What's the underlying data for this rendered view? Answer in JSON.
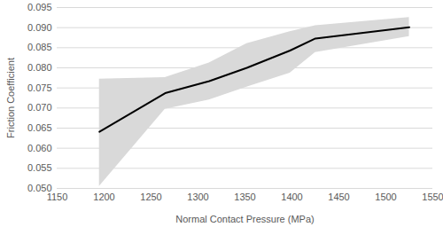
{
  "chart_data": {
    "type": "line",
    "x_label": "Normal Contact Pressure (MPa)",
    "y_label": "Friction Coefficient",
    "x": [
      1195,
      1265,
      1312,
      1352,
      1398,
      1425,
      1525
    ],
    "values": [
      0.0641,
      0.0737,
      0.0767,
      0.08,
      0.0843,
      0.0873,
      0.0901
    ],
    "lower": [
      0.0505,
      0.0697,
      0.072,
      0.0752,
      0.0787,
      0.0838,
      0.0878
    ],
    "upper": [
      0.0772,
      0.0776,
      0.0812,
      0.086,
      0.089,
      0.0905,
      0.0925
    ],
    "color": "#000000",
    "xlim": [
      1150,
      1550
    ],
    "xticks": [
      1150,
      1200,
      1250,
      1300,
      1350,
      1400,
      1450,
      1500,
      1550
    ],
    "ylim": [
      0.05,
      0.095
    ],
    "yticks": [
      {
        "value": 0.05,
        "label": "0.050"
      },
      {
        "value": 0.055,
        "label": "0.055"
      },
      {
        "value": 0.06,
        "label": "0.060"
      },
      {
        "value": 0.065,
        "label": "0.065"
      },
      {
        "value": 0.07,
        "label": "0.070"
      },
      {
        "value": 0.075,
        "label": "0.075"
      },
      {
        "value": 0.08,
        "label": "0.080"
      },
      {
        "value": 0.085,
        "label": "0.085"
      },
      {
        "value": 0.09,
        "label": "0.090"
      },
      {
        "value": 0.095,
        "label": "0.095"
      }
    ],
    "grid": true
  }
}
